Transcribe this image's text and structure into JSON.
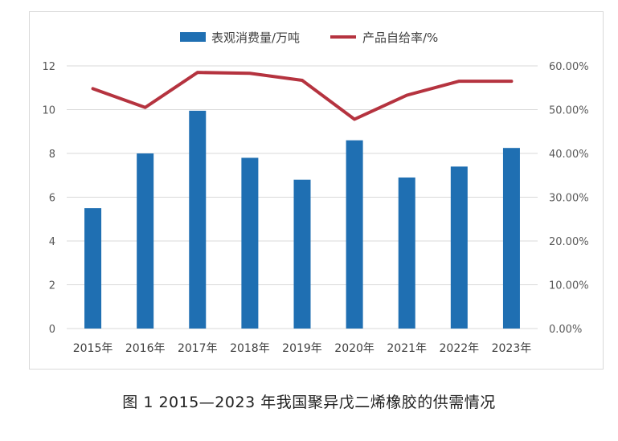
{
  "chart_data": {
    "type": "bar+line",
    "categories": [
      "2015年",
      "2016年",
      "2017年",
      "2018年",
      "2019年",
      "2020年",
      "2021年",
      "2022年",
      "2023年"
    ],
    "series": [
      {
        "name": "表观消费量/万吨",
        "type": "bar",
        "axis": "left",
        "color": "#1f6fb2",
        "values": [
          5.5,
          8.0,
          9.95,
          7.8,
          6.8,
          8.6,
          6.9,
          7.4,
          8.25
        ]
      },
      {
        "name": "产品自给率/%",
        "type": "line",
        "axis": "right",
        "color": "#b5333f",
        "values": [
          0.548,
          0.505,
          0.585,
          0.583,
          0.567,
          0.478,
          0.533,
          0.565,
          0.565
        ]
      }
    ],
    "y_left": {
      "min": 0,
      "max": 12,
      "ticks": [
        "0",
        "2",
        "4",
        "6",
        "8",
        "10",
        "12"
      ]
    },
    "y_right": {
      "min": 0,
      "max": 0.6,
      "ticks": [
        "0.00%",
        "10.00%",
        "20.00%",
        "30.00%",
        "40.00%",
        "50.00%",
        "60.00%"
      ]
    },
    "grid": true,
    "legend_position": "top"
  },
  "caption": "图 1  2015—2023 年我国聚异戊二烯橡胶的供需情况"
}
